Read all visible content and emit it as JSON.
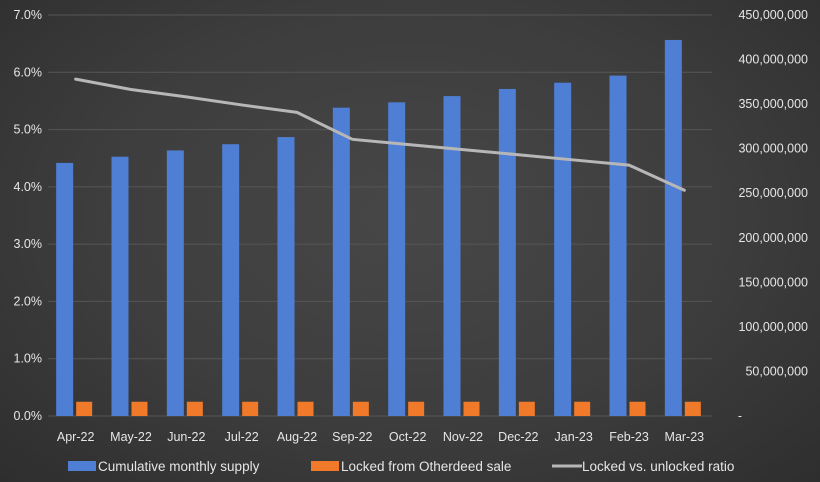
{
  "chart_data": {
    "type": "bar",
    "categories": [
      "Apr-22",
      "May-22",
      "Jun-22",
      "Jul-22",
      "Aug-22",
      "Sep-22",
      "Oct-22",
      "Nov-22",
      "Dec-22",
      "Jan-23",
      "Feb-23",
      "Mar-23"
    ],
    "series": [
      {
        "name": "Cumulative monthly supply",
        "type": "bar",
        "axis": "right",
        "color": "#4f7fd4",
        "values": [
          284000000,
          291000000,
          298000000,
          305000000,
          313000000,
          346000000,
          352000000,
          359000000,
          367000000,
          374000000,
          382000000,
          422000000
        ]
      },
      {
        "name": "Locked from Otherdeed sale",
        "type": "bar",
        "axis": "right",
        "color": "#f07a2a",
        "values": [
          16000000,
          16000000,
          16000000,
          16000000,
          16000000,
          16000000,
          16000000,
          16000000,
          16000000,
          16000000,
          16000000,
          16000000
        ]
      },
      {
        "name": "Locked vs. unlocked ratio",
        "type": "line",
        "axis": "left",
        "color": "#b7b7b7",
        "values": [
          0.0588,
          0.057,
          0.0557,
          0.0543,
          0.053,
          0.0483,
          0.0474,
          0.0465,
          0.0456,
          0.0447,
          0.0438,
          0.0394
        ]
      }
    ],
    "y_left": {
      "ylim": [
        0,
        0.07
      ],
      "ticks": [
        0,
        0.01,
        0.02,
        0.03,
        0.04,
        0.05,
        0.06,
        0.07
      ],
      "tick_labels": [
        "0.0%",
        "1.0%",
        "2.0%",
        "3.0%",
        "4.0%",
        "5.0%",
        "6.0%",
        "7.0%"
      ]
    },
    "y_right": {
      "ylim": [
        0,
        450000000
      ],
      "ticks": [
        0,
        50000000,
        100000000,
        150000000,
        200000000,
        250000000,
        300000000,
        350000000,
        400000000,
        450000000
      ],
      "tick_labels": [
        "-",
        "50,000,000",
        "100,000,000",
        "150,000,000",
        "200,000,000",
        "250,000,000",
        "300,000,000",
        "350,000,000",
        "400,000,000",
        "450,000,000"
      ]
    },
    "grid": true,
    "legend_position": "bottom",
    "title": "",
    "xlabel": "",
    "ylabel": ""
  }
}
